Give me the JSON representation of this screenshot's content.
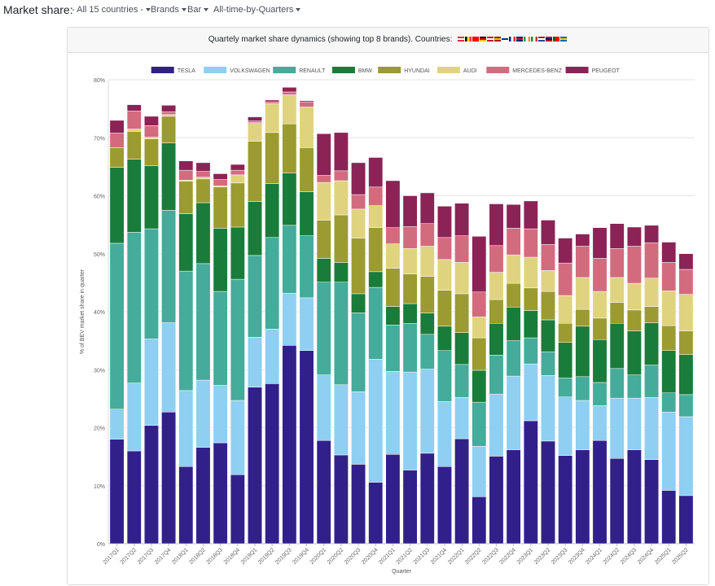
{
  "toolbar": {
    "title": "Market share:",
    "countries": "- All 15 countries -",
    "grouping": "Brands",
    "chart_type": "Bar",
    "period": "All-time-by-Quarters"
  },
  "card": {
    "title": "Quartely market share dynamics (showing top 8 brands).   Countries:",
    "flags": [
      {
        "name": "AT",
        "colors": [
          "#ed2939",
          "#ffffff",
          "#ed2939"
        ],
        "dir": "h"
      },
      {
        "name": "BE",
        "colors": [
          "#000000",
          "#fdda24",
          "#ef3340"
        ],
        "dir": "v"
      },
      {
        "name": "CH",
        "colors": [
          "#ff0000",
          "#ff0000",
          "#ff0000"
        ],
        "dir": "h"
      },
      {
        "name": "DE",
        "colors": [
          "#000000",
          "#dd0000",
          "#ffce00"
        ],
        "dir": "h"
      },
      {
        "name": "DK",
        "colors": [
          "#c8102e",
          "#ffffff",
          "#c8102e"
        ],
        "dir": "h"
      },
      {
        "name": "ES",
        "colors": [
          "#aa151b",
          "#f1bf00",
          "#aa151b"
        ],
        "dir": "h"
      },
      {
        "name": "FI",
        "colors": [
          "#ffffff",
          "#003580",
          "#ffffff"
        ],
        "dir": "h"
      },
      {
        "name": "FR",
        "colors": [
          "#002395",
          "#ffffff",
          "#ed2939"
        ],
        "dir": "v"
      },
      {
        "name": "GB",
        "colors": [
          "#012169",
          "#c8102e",
          "#012169"
        ],
        "dir": "h"
      },
      {
        "name": "IE",
        "colors": [
          "#169b62",
          "#ffffff",
          "#ff883e"
        ],
        "dir": "v"
      },
      {
        "name": "IT",
        "colors": [
          "#009246",
          "#ffffff",
          "#ce2b37"
        ],
        "dir": "v"
      },
      {
        "name": "NL",
        "colors": [
          "#ae1c28",
          "#ffffff",
          "#21468b"
        ],
        "dir": "h"
      },
      {
        "name": "NO",
        "colors": [
          "#ba0c2f",
          "#00205b",
          "#ba0c2f"
        ],
        "dir": "h"
      },
      {
        "name": "PT",
        "colors": [
          "#006600",
          "#ff0000",
          "#ff0000"
        ],
        "dir": "v"
      },
      {
        "name": "SE",
        "colors": [
          "#006aa7",
          "#fecc00",
          "#006aa7"
        ],
        "dir": "h"
      }
    ]
  },
  "chart_data": {
    "type": "bar",
    "stacked": true,
    "xlabel": "Quarter",
    "ylabel": "% of BEV market share in quarter",
    "ylim": [
      0,
      80
    ],
    "yticks": [
      0,
      10,
      20,
      30,
      40,
      50,
      60,
      70,
      80
    ],
    "categories": [
      "2017Q1",
      "2017Q2",
      "2017Q3",
      "2017Q4",
      "2018Q1",
      "2018Q2",
      "2018Q3",
      "2018Q4",
      "2019Q1",
      "2019Q2",
      "2019Q3",
      "2019Q4",
      "2020Q1",
      "2020Q2",
      "2020Q3",
      "2020Q4",
      "2021Q1",
      "2021Q2",
      "2021Q3",
      "2021Q4",
      "2022Q1",
      "2022Q2",
      "2022Q3",
      "2022Q4",
      "2023Q1",
      "2023Q2",
      "2023Q3",
      "2023Q4",
      "2024Q1",
      "2024Q2",
      "2024Q3",
      "2024Q4",
      "2025Q1",
      "2025Q2"
    ],
    "legend_position": "top",
    "series": [
      {
        "name": "TESLA",
        "color": "#32208a",
        "values": [
          18,
          16,
          20.4,
          22.7,
          13.3,
          16.6,
          17.4,
          11.9,
          27,
          27.6,
          34.2,
          33.3,
          17.8,
          15.3,
          13.7,
          10.6,
          15.4,
          12.7,
          15.6,
          13.3,
          18.1,
          8.1,
          15.1,
          16.2,
          21.2,
          17.7,
          15.2,
          16.2,
          17.8,
          14.7,
          16.2,
          14.5,
          9.2,
          8.3
        ]
      },
      {
        "name": "VOLKSWAGEN",
        "color": "#8ecff2",
        "values": [
          5.2,
          11.7,
          14.9,
          15.4,
          13.1,
          11.6,
          9.9,
          12.8,
          8.6,
          9.4,
          9,
          9.1,
          11.3,
          12.1,
          12.5,
          21.2,
          14.3,
          16.9,
          14.5,
          11.2,
          7.1,
          8.7,
          10.7,
          12.7,
          9.8,
          11.3,
          10.1,
          8.5,
          6,
          10.4,
          8.9,
          10.7,
          13.5,
          13.6
        ]
      },
      {
        "name": "RENAULT",
        "color": "#45ab9a",
        "values": [
          28.6,
          26,
          19,
          19.4,
          20.6,
          20.1,
          16.2,
          20.9,
          14.1,
          15.8,
          11.7,
          10.7,
          16,
          17.7,
          13.6,
          12.4,
          8,
          8.4,
          6,
          8.8,
          5.7,
          7.6,
          6.7,
          6.1,
          4.5,
          4.1,
          3.3,
          4.1,
          4,
          5.1,
          4,
          5.6,
          3.3,
          3.8
        ]
      },
      {
        "name": "BMW",
        "color": "#1a7c3a",
        "values": [
          13.1,
          12.6,
          10.9,
          11.6,
          9.9,
          10.5,
          10.9,
          9,
          9.3,
          9.3,
          9,
          7.6,
          4.1,
          3.4,
          3.3,
          2.7,
          3.2,
          3.4,
          3.7,
          4.2,
          5.5,
          5.5,
          5.5,
          5.8,
          4.7,
          5.5,
          6.1,
          8.7,
          7.4,
          7.8,
          7.6,
          7.3,
          7.3,
          6.9
        ]
      },
      {
        "name": "HYUNDAI",
        "color": "#9b9b31",
        "values": [
          3.4,
          4.8,
          4.6,
          4.6,
          5.6,
          4.1,
          7.1,
          7.6,
          10.4,
          8.8,
          8.5,
          7.6,
          6.6,
          8.2,
          9.6,
          7.6,
          6.6,
          5.1,
          6.3,
          6.2,
          6.7,
          5.6,
          4.1,
          4.1,
          3.9,
          4.9,
          3.3,
          2.9,
          3.7,
          3.6,
          3.6,
          2.8,
          4.3,
          4.1
        ]
      },
      {
        "name": "AUDI",
        "color": "#e0d37f",
        "values": [
          0,
          0.4,
          0.3,
          0.3,
          0.2,
          0.3,
          0.2,
          1.4,
          3.2,
          5,
          5,
          7,
          6.5,
          5.9,
          5,
          3.8,
          4.2,
          4.4,
          5.2,
          5.3,
          5.4,
          3.6,
          4.7,
          4.9,
          5.3,
          3.6,
          4.8,
          5.5,
          4.6,
          4.3,
          4.6,
          4.9,
          6,
          6.3
        ]
      },
      {
        "name": "MERCEDES-BENZ",
        "color": "#d36b7e",
        "values": [
          2.5,
          3.1,
          2,
          0.5,
          1.7,
          1,
          1.1,
          0.8,
          0.3,
          0.3,
          0.5,
          0.9,
          1.2,
          1.7,
          2.5,
          3.2,
          2.8,
          3.8,
          3.9,
          3.8,
          4.6,
          4.3,
          4.6,
          4.6,
          4.9,
          4.5,
          5.6,
          5.4,
          5.7,
          5,
          6.4,
          6.1,
          4.9,
          4.3
        ]
      },
      {
        "name": "PEUGEOT",
        "color": "#8b2356",
        "values": [
          2.2,
          1.1,
          1.6,
          1.1,
          1.6,
          1.5,
          1,
          1,
          0.7,
          0.3,
          0.8,
          0.2,
          7.2,
          6.6,
          5.5,
          5.1,
          8.1,
          5.3,
          5.3,
          5.4,
          5.6,
          9.6,
          7.2,
          4.1,
          4.8,
          4.2,
          4.3,
          2.1,
          5.3,
          4.3,
          3.3,
          3,
          3.5,
          2.7
        ]
      }
    ]
  }
}
